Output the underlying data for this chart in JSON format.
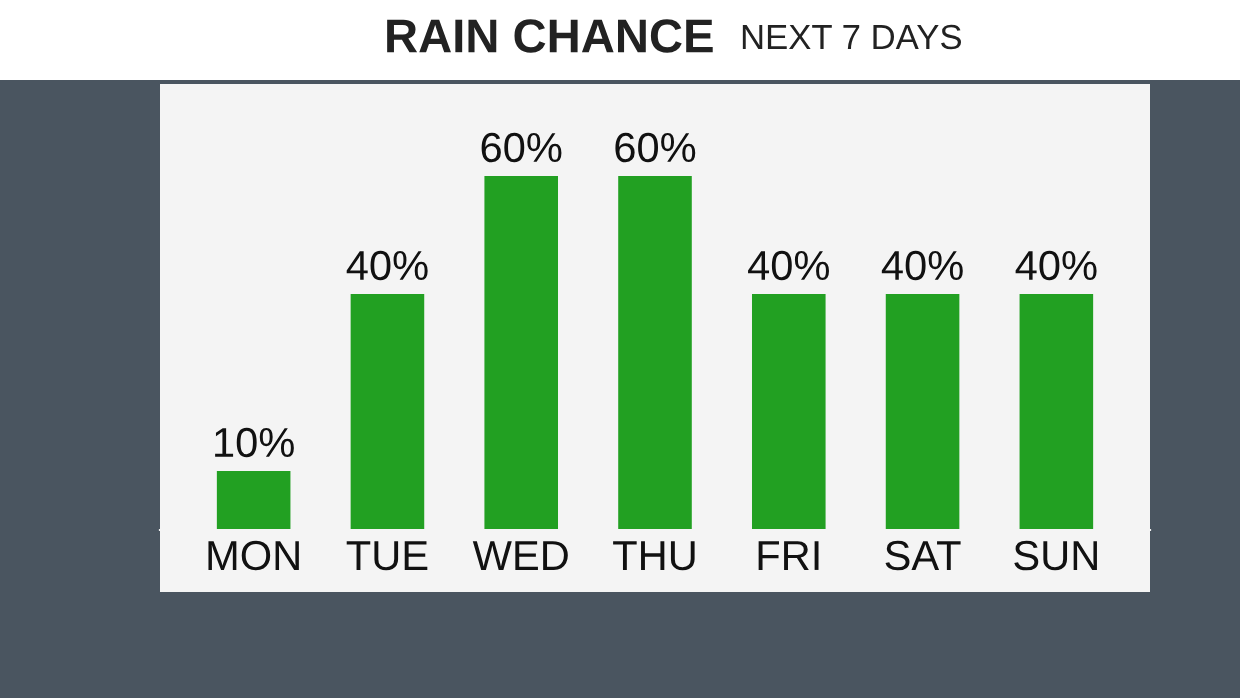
{
  "chart_data": {
    "type": "bar",
    "title": "RAIN CHANCE",
    "subtitle": "NEXT 7 DAYS",
    "categories": [
      "MON",
      "TUE",
      "WED",
      "THU",
      "FRI",
      "SAT",
      "SUN"
    ],
    "values": [
      10,
      40,
      60,
      60,
      40,
      40,
      40
    ],
    "value_labels": [
      "10%",
      "40%",
      "60%",
      "60%",
      "40%",
      "40%",
      "40%"
    ],
    "color": "#22a022",
    "grid": false,
    "legend": false
  }
}
